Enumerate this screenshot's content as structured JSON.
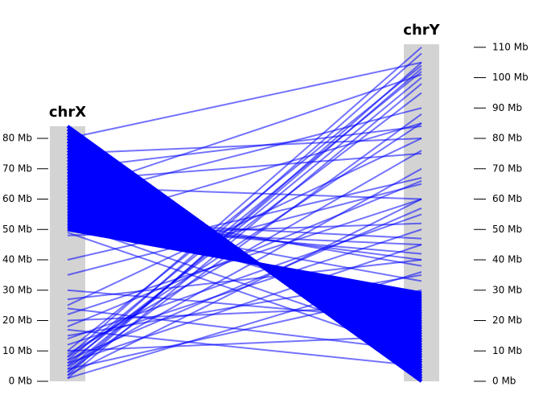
{
  "chart_data": {
    "type": "synteny",
    "color": "#0000ff",
    "ylim": [
      0,
      111
    ],
    "tracks": [
      {
        "name": "chrX",
        "length": 84,
        "side": "left",
        "ticks": [
          {
            "value": 0,
            "label": "0 Mb"
          },
          {
            "value": 10,
            "label": "10 Mb"
          },
          {
            "value": 20,
            "label": "20 Mb"
          },
          {
            "value": 30,
            "label": "30 Mb"
          },
          {
            "value": 40,
            "label": "40 Mb"
          },
          {
            "value": 50,
            "label": "50 Mb"
          },
          {
            "value": 60,
            "label": "60 Mb"
          },
          {
            "value": 70,
            "label": "70 Mb"
          },
          {
            "value": 80,
            "label": "80 Mb"
          }
        ]
      },
      {
        "name": "chrY",
        "length": 111,
        "side": "right",
        "ticks": [
          {
            "value": 0,
            "label": "0 Mb"
          },
          {
            "value": 10,
            "label": "10 Mb"
          },
          {
            "value": 20,
            "label": "20 Mb"
          },
          {
            "value": 30,
            "label": "30 Mb"
          },
          {
            "value": 40,
            "label": "40 Mb"
          },
          {
            "value": 50,
            "label": "50 Mb"
          },
          {
            "value": 60,
            "label": "60 Mb"
          },
          {
            "value": 70,
            "label": "70 Mb"
          },
          {
            "value": 80,
            "label": "80 Mb"
          },
          {
            "value": 90,
            "label": "90 Mb"
          },
          {
            "value": 100,
            "label": "100 Mb"
          },
          {
            "value": 110,
            "label": "110 Mb"
          }
        ]
      }
    ],
    "block_links": [
      [
        84,
        0
      ],
      [
        83,
        0.9
      ],
      [
        82,
        1.7
      ],
      [
        81,
        2.6
      ],
      [
        80,
        3.4
      ],
      [
        79,
        4.3
      ],
      [
        78,
        5.1
      ],
      [
        77,
        6.0
      ],
      [
        76,
        6.8
      ],
      [
        75,
        7.7
      ],
      [
        74,
        8.5
      ],
      [
        73,
        9.4
      ],
      [
        72,
        10.2
      ],
      [
        71,
        11.1
      ],
      [
        70,
        11.9
      ],
      [
        69,
        12.8
      ],
      [
        68,
        13.6
      ],
      [
        67,
        14.5
      ],
      [
        66,
        15.4
      ],
      [
        65,
        16.2
      ],
      [
        64,
        17.1
      ],
      [
        63,
        17.9
      ],
      [
        62,
        18.8
      ],
      [
        61,
        19.6
      ],
      [
        60,
        20.5
      ],
      [
        59,
        21.3
      ],
      [
        58,
        22.2
      ],
      [
        57,
        23.0
      ],
      [
        56,
        23.9
      ],
      [
        55,
        24.7
      ],
      [
        54,
        25.6
      ],
      [
        53,
        26.4
      ],
      [
        52,
        27.3
      ],
      [
        51,
        28.1
      ],
      [
        50,
        29.0
      ]
    ],
    "links": [
      [
        2,
        105
      ],
      [
        3,
        103
      ],
      [
        4,
        100
      ],
      [
        5,
        108
      ],
      [
        6,
        95
      ],
      [
        7,
        102
      ],
      [
        8,
        110
      ],
      [
        1,
        98
      ],
      [
        3,
        88
      ],
      [
        5,
        70
      ],
      [
        2,
        60
      ],
      [
        6,
        45
      ],
      [
        4,
        30
      ],
      [
        8,
        85
      ],
      [
        9,
        76
      ],
      [
        10,
        104
      ],
      [
        15,
        35
      ],
      [
        18,
        66
      ],
      [
        20,
        25
      ],
      [
        22,
        60
      ],
      [
        25,
        80
      ],
      [
        27,
        40
      ],
      [
        17,
        5
      ],
      [
        40,
        67
      ],
      [
        48,
        52
      ],
      [
        50,
        45
      ],
      [
        52,
        42
      ],
      [
        51,
        85
      ],
      [
        53,
        47
      ],
      [
        55,
        40
      ],
      [
        58,
        38
      ],
      [
        60,
        90
      ],
      [
        62,
        101
      ],
      [
        64,
        60
      ],
      [
        66,
        75
      ],
      [
        70,
        84
      ],
      [
        75,
        80
      ],
      [
        80,
        105
      ],
      [
        54,
        33
      ],
      [
        56,
        22
      ],
      [
        52,
        12
      ],
      [
        49,
        9
      ],
      [
        10,
        15
      ],
      [
        12,
        50
      ],
      [
        14,
        55
      ],
      [
        30,
        20
      ],
      [
        35,
        65
      ],
      [
        24,
        10
      ],
      [
        1,
        36
      ],
      [
        7,
        57
      ]
    ]
  }
}
